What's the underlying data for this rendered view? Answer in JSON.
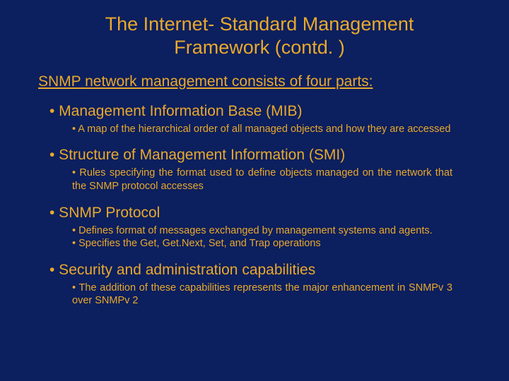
{
  "colors": {
    "background": "#0c1f5e",
    "text": "#e8a92c"
  },
  "title": "The Internet- Standard Management Framework (contd. )",
  "intro": "SNMP network management consists of four parts:",
  "sections": [
    {
      "heading": "• Management Information Base (MIB)",
      "subs": [
        "• A map of the hierarchical order of all managed objects and how they are accessed"
      ],
      "justify": true
    },
    {
      "heading": "• Structure of Management Information (SMI)",
      "subs": [
        "• Rules specifying the format used to define objects managed on the network that the SNMP protocol accesses"
      ],
      "justify": true
    },
    {
      "heading": "• SNMP Protocol",
      "subs": [
        "• Defines format of messages exchanged by management systems and agents.",
        "• Specifies the Get, Get.Next, Set, and Trap operations"
      ],
      "justify": true
    },
    {
      "heading": "• Security and administration capabilities",
      "subs": [
        "• The addition of these capabilities represents the major enhancement in SNMPv 3 over SNMPv 2"
      ],
      "justify": true
    }
  ]
}
